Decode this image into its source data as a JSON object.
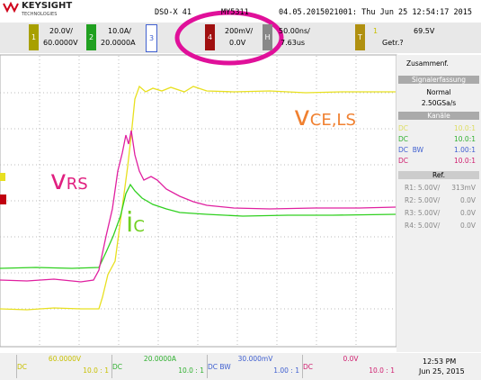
{
  "header": {
    "brand": "KEYSIGHT",
    "brand_sub": "TECHNOLOGIES",
    "model": "DSO-X 41",
    "serial": "MY5311",
    "info": "04.05.2015021001: Thu Jun 25 12:54:17 2015"
  },
  "channels": [
    {
      "num": "1",
      "scale": "20.0V/",
      "offset": "60.0000V"
    },
    {
      "num": "2",
      "scale": "10.0A/",
      "offset": "20.0000A"
    },
    {
      "num": "3"
    },
    {
      "num": "4",
      "scale": "200mV/",
      "offset": "0.0V"
    }
  ],
  "horizontal": {
    "label": "H",
    "scale": "50.00ns/",
    "delay": "7.63us"
  },
  "trigger": {
    "label": "T",
    "source": "1",
    "level": "69.5V",
    "mode": "Getr.?"
  },
  "annotations": {
    "vrs": {
      "main": "v",
      "sub": "RS"
    },
    "ic": {
      "main": "i",
      "sub": "C"
    },
    "vce": {
      "main": "v",
      "sub": "CE,LS"
    }
  },
  "side_panel": {
    "title": "Zusammenf.",
    "acq_header": "Signalerfassung",
    "acq_mode": "Normal",
    "sample_rate": "2.50GSa/s",
    "channels_header": "Kanäle",
    "channel_rows": [
      [
        "DC",
        "10.0:1"
      ],
      [
        "DC",
        "10.0:1"
      ],
      [
        "DC  BW",
        "1.00:1"
      ],
      [
        "DC",
        "10.0:1"
      ]
    ],
    "ref_header": "Ref.",
    "ref_rows": [
      [
        "R1: 5.00V/",
        "313mV"
      ],
      [
        "R2: 5.00V/",
        "0.0V"
      ],
      [
        "R3: 5.00V/",
        "0.0V"
      ],
      [
        "R4: 5.00V/",
        "0.0V"
      ]
    ]
  },
  "footer": {
    "channels": [
      {
        "offset": "60.0000V",
        "coupling": "DC",
        "probe": "10.0 : 1"
      },
      {
        "offset": "20.0000A",
        "coupling": "DC",
        "probe": "10.0 : 1"
      },
      {
        "offset": "30.000mV",
        "coupling": "DC  BW",
        "probe": "1.00 : 1"
      },
      {
        "offset": "0.0V",
        "coupling": "DC",
        "probe": "10.0 : 1"
      }
    ],
    "time": "12:53 PM",
    "date": "Jun 25, 2015"
  }
}
